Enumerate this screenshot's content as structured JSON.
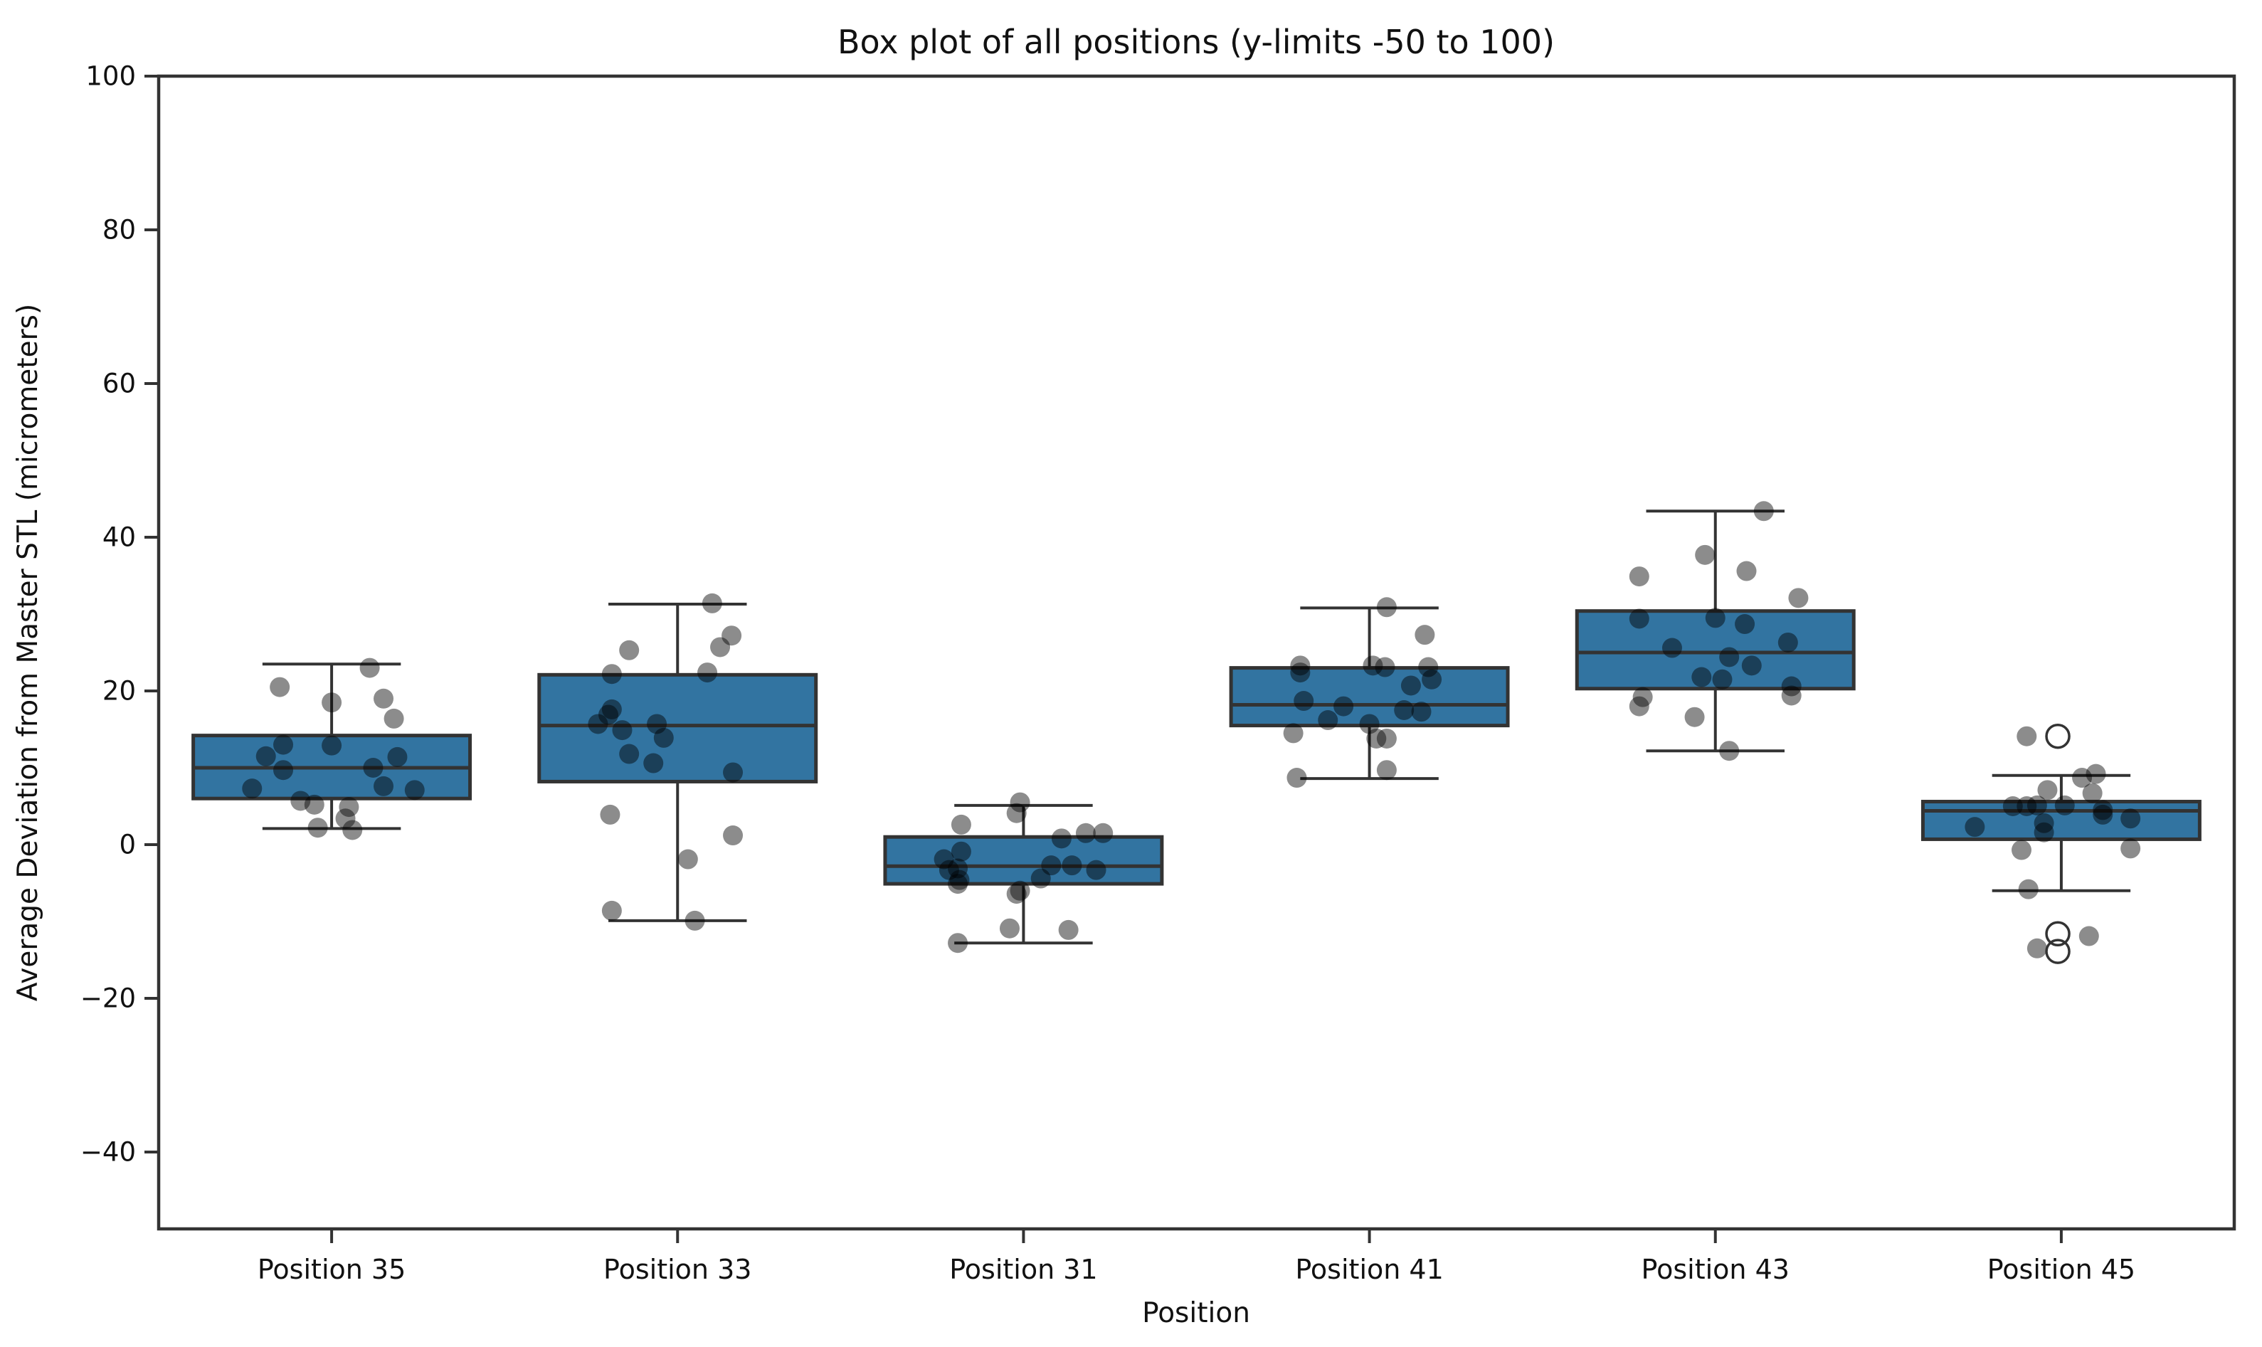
{
  "figure": {
    "title": "Box plot of all positions (y-limits -50 to 100)"
  },
  "chart_data": {
    "type": "boxplot",
    "title": "Box plot of all positions (y-limits -50 to 100)",
    "xlabel": "Position",
    "ylabel": "Average Deviation from Master STL (micrometers)",
    "ylim": [
      -50,
      100
    ],
    "yticks": [
      -40,
      -20,
      0,
      20,
      40,
      60,
      80,
      100
    ],
    "grid": false,
    "legend": "none",
    "categories": [
      "Position 35",
      "Position 33",
      "Position 31",
      "Position 41",
      "Position 43",
      "Position 45"
    ],
    "boxes": [
      {
        "label": "Position 35",
        "whislo": 2.1,
        "q1": 6.0,
        "med": 10.0,
        "q3": 14.2,
        "whishi": 23.5,
        "fliers": [],
        "points": [
          [
            0.11,
            23.0
          ],
          [
            -0.15,
            20.5
          ],
          [
            0.0,
            18.5
          ],
          [
            0.15,
            19.0
          ],
          [
            0.18,
            16.4
          ],
          [
            -0.14,
            13.0
          ],
          [
            0.0,
            12.9
          ],
          [
            -0.19,
            11.5
          ],
          [
            0.19,
            11.4
          ],
          [
            -0.14,
            9.7
          ],
          [
            0.12,
            10.0
          ],
          [
            -0.23,
            7.3
          ],
          [
            0.15,
            7.6
          ],
          [
            0.24,
            7.1
          ],
          [
            -0.09,
            5.7
          ],
          [
            -0.05,
            5.2
          ],
          [
            0.05,
            4.9
          ],
          [
            0.04,
            3.4
          ],
          [
            -0.04,
            2.2
          ],
          [
            0.06,
            1.9
          ]
        ]
      },
      {
        "label": "Position 33",
        "whislo": -9.9,
        "q1": 8.2,
        "med": 15.5,
        "q3": 22.1,
        "whishi": 31.3,
        "fliers": [],
        "points": [
          [
            0.1,
            31.4
          ],
          [
            0.156,
            27.2
          ],
          [
            0.123,
            25.7
          ],
          [
            -0.14,
            25.3
          ],
          [
            -0.19,
            22.2
          ],
          [
            0.086,
            22.4
          ],
          [
            -0.19,
            17.6
          ],
          [
            -0.2,
            16.9
          ],
          [
            -0.23,
            15.7
          ],
          [
            -0.16,
            14.9
          ],
          [
            -0.06,
            15.7
          ],
          [
            -0.04,
            13.9
          ],
          [
            -0.14,
            11.8
          ],
          [
            -0.07,
            10.6
          ],
          [
            0.16,
            9.4
          ],
          [
            -0.195,
            3.9
          ],
          [
            0.16,
            1.2
          ],
          [
            0.03,
            -1.9
          ],
          [
            -0.19,
            -8.6
          ],
          [
            0.05,
            -9.9
          ]
        ]
      },
      {
        "label": "Position 31",
        "whislo": -12.8,
        "q1": -5.1,
        "med": -2.8,
        "q3": 1.0,
        "whishi": 5.1,
        "fliers": [],
        "points": [
          [
            -0.01,
            5.5
          ],
          [
            -0.02,
            4.1
          ],
          [
            -0.18,
            2.6
          ],
          [
            0.11,
            0.8
          ],
          [
            0.18,
            1.5
          ],
          [
            0.23,
            1.5
          ],
          [
            -0.23,
            -1.9
          ],
          [
            -0.18,
            -0.9
          ],
          [
            -0.215,
            -3.3
          ],
          [
            -0.19,
            -3.1
          ],
          [
            -0.185,
            -4.6
          ],
          [
            0.08,
            -2.7
          ],
          [
            0.14,
            -2.7
          ],
          [
            0.21,
            -3.3
          ],
          [
            0.05,
            -4.4
          ],
          [
            -0.19,
            -5.1
          ],
          [
            -0.01,
            -6.0
          ],
          [
            -0.02,
            -6.4
          ],
          [
            -0.04,
            -10.9
          ],
          [
            0.13,
            -11.1
          ],
          [
            -0.19,
            -12.8
          ]
        ]
      },
      {
        "label": "Position 41",
        "whislo": 8.6,
        "q1": 15.5,
        "med": 18.2,
        "q3": 23.0,
        "whishi": 30.8,
        "fliers": [],
        "points": [
          [
            0.05,
            30.9
          ],
          [
            0.16,
            27.3
          ],
          [
            -0.2,
            23.3
          ],
          [
            -0.2,
            22.4
          ],
          [
            0.01,
            23.3
          ],
          [
            0.045,
            23.1
          ],
          [
            0.17,
            23.1
          ],
          [
            0.12,
            20.7
          ],
          [
            0.18,
            21.5
          ],
          [
            -0.19,
            18.7
          ],
          [
            -0.075,
            18.0
          ],
          [
            0.1,
            17.5
          ],
          [
            0.15,
            17.3
          ],
          [
            -0.12,
            16.2
          ],
          [
            0.0,
            15.7
          ],
          [
            -0.22,
            14.5
          ],
          [
            0.02,
            13.8
          ],
          [
            0.05,
            13.8
          ],
          [
            0.05,
            9.7
          ],
          [
            -0.21,
            8.7
          ]
        ]
      },
      {
        "label": "Position 43",
        "whislo": 12.2,
        "q1": 20.3,
        "med": 25.0,
        "q3": 30.4,
        "whishi": 43.4,
        "fliers": [],
        "points": [
          [
            0.14,
            43.4
          ],
          [
            -0.03,
            37.7
          ],
          [
            0.09,
            35.6
          ],
          [
            -0.22,
            34.9
          ],
          [
            0.24,
            32.1
          ],
          [
            -0.22,
            29.4
          ],
          [
            0.0,
            29.5
          ],
          [
            0.085,
            28.7
          ],
          [
            0.21,
            26.3
          ],
          [
            -0.125,
            25.6
          ],
          [
            0.04,
            24.4
          ],
          [
            0.105,
            23.3
          ],
          [
            -0.04,
            21.8
          ],
          [
            0.02,
            21.5
          ],
          [
            0.22,
            20.6
          ],
          [
            0.22,
            19.4
          ],
          [
            -0.21,
            19.2
          ],
          [
            -0.22,
            18.0
          ],
          [
            -0.06,
            16.6
          ],
          [
            0.04,
            12.2
          ]
        ]
      },
      {
        "label": "Position 45",
        "whislo": -6.0,
        "q1": 0.7,
        "med": 4.4,
        "q3": 5.6,
        "whishi": 9.0,
        "fliers": [
          [
            -0.01,
            14.1
          ],
          [
            -0.01,
            -11.6
          ],
          [
            -0.01,
            -13.9
          ]
        ],
        "points": [
          [
            -0.1,
            14.1
          ],
          [
            0.06,
            8.7
          ],
          [
            0.1,
            9.2
          ],
          [
            -0.04,
            7.1
          ],
          [
            0.09,
            6.7
          ],
          [
            -0.14,
            5.0
          ],
          [
            -0.1,
            5.0
          ],
          [
            -0.07,
            5.1
          ],
          [
            0.01,
            5.1
          ],
          [
            0.12,
            4.5
          ],
          [
            0.12,
            3.9
          ],
          [
            0.2,
            3.4
          ],
          [
            -0.25,
            2.3
          ],
          [
            -0.05,
            2.8
          ],
          [
            -0.05,
            1.6
          ],
          [
            -0.115,
            -0.7
          ],
          [
            0.2,
            -0.5
          ],
          [
            -0.095,
            -5.8
          ],
          [
            -0.07,
            -13.5
          ],
          [
            0.08,
            -11.9
          ]
        ]
      }
    ],
    "style": {
      "box_fill": "#3274a1",
      "line_color": "#333333",
      "point_color": "#000000",
      "point_opacity": 0.45,
      "flier_edge": "#333333",
      "background": "#ffffff",
      "text_color": "#111111"
    }
  }
}
